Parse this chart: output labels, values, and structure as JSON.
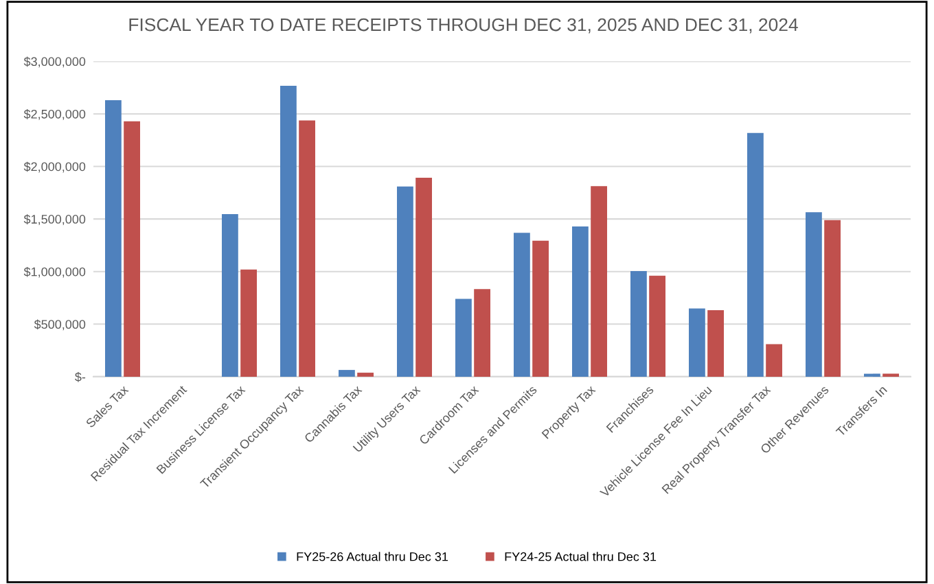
{
  "chart_data": {
    "type": "bar",
    "title": "FISCAL YEAR TO DATE RECEIPTS THROUGH DEC 31, 2025 AND DEC 31, 2024",
    "categories": [
      "Sales Tax",
      "Residual Tax Increment",
      "Business License Tax",
      "Transient Occupancy Tax",
      "Cannabis Tax",
      "Utility Users Tax",
      "Cardroom Tax",
      "Licenses and Permits",
      "Property Tax",
      "Franchises",
      "Vehicle License Fee In Lieu",
      "Real Property Transfer Tax",
      "Other Revenues",
      "Transfers In"
    ],
    "series": [
      {
        "name": "FY25-26 Actual thru Dec 31",
        "color": "#4f81bd",
        "values": [
          2630000,
          0,
          1547000,
          2767000,
          64000,
          1809000,
          740000,
          1369000,
          1429000,
          1004000,
          649000,
          2319000,
          1565000,
          28000
        ]
      },
      {
        "name": "FY24-25 Actual thru Dec 31",
        "color": "#c0504d",
        "values": [
          2429000,
          0,
          1020000,
          2438000,
          38000,
          1893000,
          834000,
          1293000,
          1812000,
          961000,
          632000,
          309000,
          1489000,
          28000
        ]
      }
    ],
    "ylim": [
      0,
      3000000
    ],
    "yticks": [
      {
        "value": 0,
        "label": "$-"
      },
      {
        "value": 500000,
        "label": "$500,000"
      },
      {
        "value": 1000000,
        "label": "$1,000,000"
      },
      {
        "value": 1500000,
        "label": "$1,500,000"
      },
      {
        "value": 2000000,
        "label": "$2,000,000"
      },
      {
        "value": 2500000,
        "label": "$2,500,000"
      },
      {
        "value": 3000000,
        "label": "$3,000,000"
      }
    ],
    "grid": "y",
    "legend": "bottom"
  }
}
